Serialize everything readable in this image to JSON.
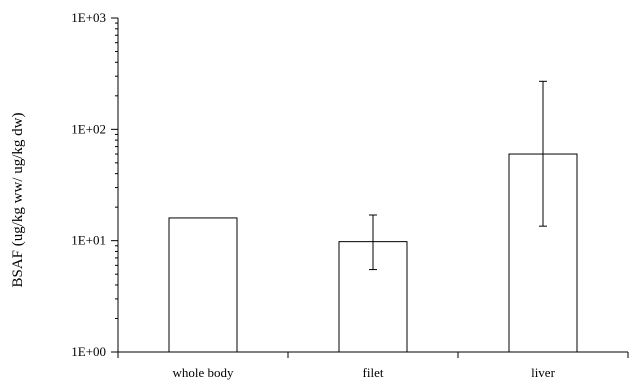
{
  "chart_data": {
    "type": "bar",
    "title": "",
    "xlabel": "",
    "ylabel": "BSAF (ug/kg ww/ ug/kg dw)",
    "yscale": "log",
    "ylim": [
      1,
      1000
    ],
    "yticks": [
      {
        "value": 1,
        "label": "1E+00"
      },
      {
        "value": 10,
        "label": "1E+01"
      },
      {
        "value": 100,
        "label": "1E+02"
      },
      {
        "value": 1000,
        "label": "1E+03"
      }
    ],
    "categories": [
      "whole body",
      "filet",
      "liver"
    ],
    "values": [
      16,
      9.8,
      60
    ],
    "error_low": [
      null,
      5.5,
      13.5
    ],
    "error_high": [
      null,
      17,
      270
    ],
    "bar_color": "#ffffff",
    "edge_color": "#000000",
    "grid": false,
    "legend": "none"
  }
}
